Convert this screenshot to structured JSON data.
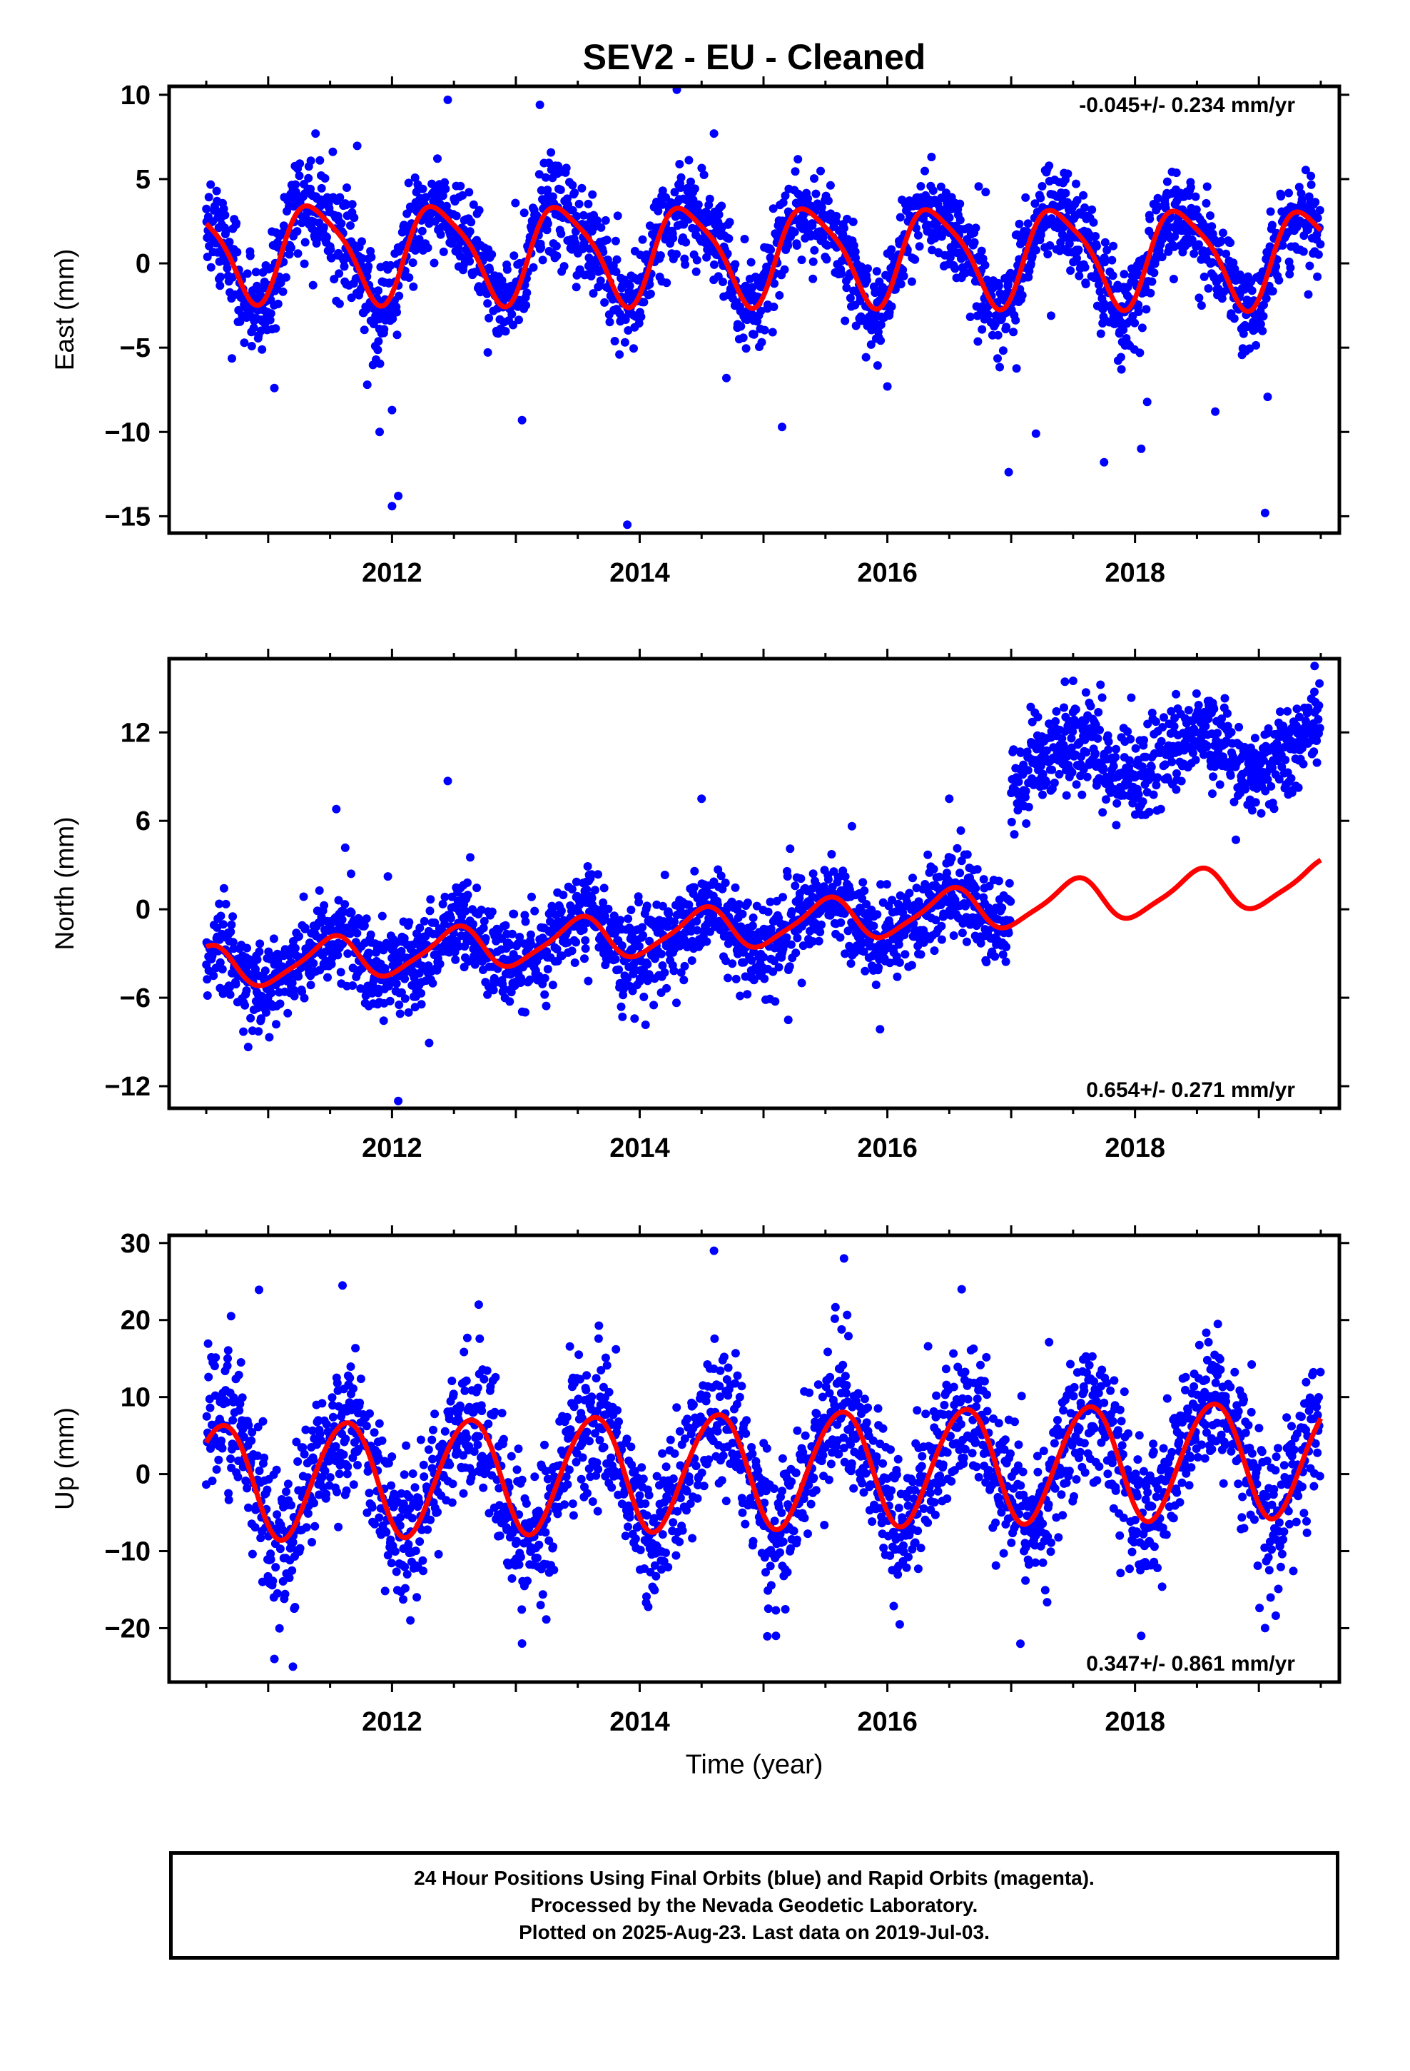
{
  "figure": {
    "title": "SEV2  - EU - Cleaned",
    "xlabel": "Time (year)"
  },
  "footer": {
    "line1": "24 Hour Positions Using Final Orbits (blue) and Rapid Orbits (magenta).",
    "line2": "Processed by the Nevada Geodetic Laboratory.",
    "line3": "Plotted on 2025-Aug-23. Last data on 2019-Jul-03."
  },
  "colors": {
    "points": "#0000ff",
    "model": "#ff0000",
    "frame": "#000000"
  },
  "chart_data": [
    {
      "type": "scatter",
      "panel": "east",
      "ylabel": "East (mm)",
      "rate_label": "-0.045+/- 0.234 mm/yr",
      "rate_position": "top-right",
      "xlim": [
        2010.2,
        2019.65
      ],
      "ylim": [
        -16,
        10.5
      ],
      "xticks": [
        2012,
        2014,
        2016,
        2018
      ],
      "yticks": [
        -15,
        -10,
        -5,
        0,
        5,
        10
      ],
      "data_start": 2010.5,
      "data_end": 2019.5,
      "model": {
        "offset": 0.6,
        "trend": -0.045,
        "annual_amp": 2.8,
        "semiannual_amp": 0.6,
        "peak_phase": 0.38,
        "semiannual_phase": 0.2
      },
      "points": {
        "noise_std": 1.4,
        "outlier_std": 4.5,
        "outlier_fraction": 0.012
      },
      "outliers": [
        [
          2011.8,
          -7.2
        ],
        [
          2011.9,
          -10
        ],
        [
          2012.0,
          -14.4
        ],
        [
          2012.05,
          -13.8
        ],
        [
          2012.0,
          -8.7
        ],
        [
          2013.05,
          -9.3
        ],
        [
          2013.9,
          -15.5
        ],
        [
          2015.15,
          -9.7
        ],
        [
          2016.0,
          -7.3
        ],
        [
          2017.2,
          -10.1
        ],
        [
          2017.75,
          -11.8
        ],
        [
          2018.05,
          -11
        ],
        [
          2019.05,
          -14.8
        ],
        [
          2014.3,
          10.3
        ],
        [
          2012.45,
          9.7
        ],
        [
          2014.6,
          7.7
        ],
        [
          2014.7,
          -6.8
        ],
        [
          2011.05,
          -7.4
        ]
      ]
    },
    {
      "type": "scatter",
      "panel": "north",
      "ylabel": "North (mm)",
      "rate_label": "0.654+/- 0.271 mm/yr",
      "rate_position": "bottom-right",
      "xlim": [
        2010.2,
        2019.65
      ],
      "ylim": [
        -13.5,
        17
      ],
      "xticks": [
        2012,
        2014,
        2016,
        2018
      ],
      "yticks": [
        -12,
        -6,
        0,
        6,
        12
      ],
      "data_start": 2010.5,
      "data_end": 2019.5,
      "offset_epoch": 2017.0,
      "offset_size": 9.5,
      "model": {
        "offset": -1.1,
        "trend": 0.654,
        "annual_amp": 1.4,
        "semiannual_amp": 0.3,
        "peak_phase": 0.5,
        "semiannual_phase": 0.1
      },
      "points": {
        "noise_std": 1.5,
        "outlier_std": 4.0,
        "outlier_fraction": 0.01
      },
      "outliers": [
        [
          2012.05,
          -13
        ],
        [
          2015.2,
          -7.5
        ],
        [
          2010.8,
          -8.3
        ],
        [
          2012.45,
          8.7
        ],
        [
          2017.5,
          15.5
        ],
        [
          2019.45,
          16.5
        ],
        [
          2014.5,
          7.5
        ],
        [
          2011.55,
          6.8
        ],
        [
          2016.5,
          7.5
        ]
      ]
    },
    {
      "type": "scatter",
      "panel": "up",
      "ylabel": "Up (mm)",
      "rate_label": "0.347+/- 0.861 mm/yr",
      "rate_position": "bottom-right",
      "xlim": [
        2010.2,
        2019.65
      ],
      "ylim": [
        -27,
        31
      ],
      "xticks": [
        2012,
        2014,
        2016,
        2018
      ],
      "yticks": [
        -20,
        -10,
        0,
        10,
        20,
        30
      ],
      "data_start": 2010.5,
      "data_end": 2019.5,
      "model": {
        "offset": 0.6,
        "trend": 0.347,
        "annual_amp": 7.5,
        "semiannual_amp": 0.5,
        "peak_phase": 0.62,
        "semiannual_phase": 0.3
      },
      "points": {
        "noise_std": 4.5,
        "outlier_std": 9.0,
        "outlier_fraction": 0.015
      },
      "outliers": [
        [
          2011.05,
          -24
        ],
        [
          2011.2,
          -25
        ],
        [
          2013.05,
          -22
        ],
        [
          2014.6,
          29
        ],
        [
          2015.65,
          28
        ],
        [
          2016.6,
          24
        ],
        [
          2019.05,
          -20
        ],
        [
          2018.05,
          -21
        ],
        [
          2011.6,
          24.5
        ],
        [
          2012.7,
          22
        ],
        [
          2015.1,
          -21
        ],
        [
          2016.1,
          -19.5
        ],
        [
          2010.7,
          20.5
        ],
        [
          2012.2,
          -16
        ],
        [
          2013.2,
          -17
        ]
      ]
    }
  ]
}
